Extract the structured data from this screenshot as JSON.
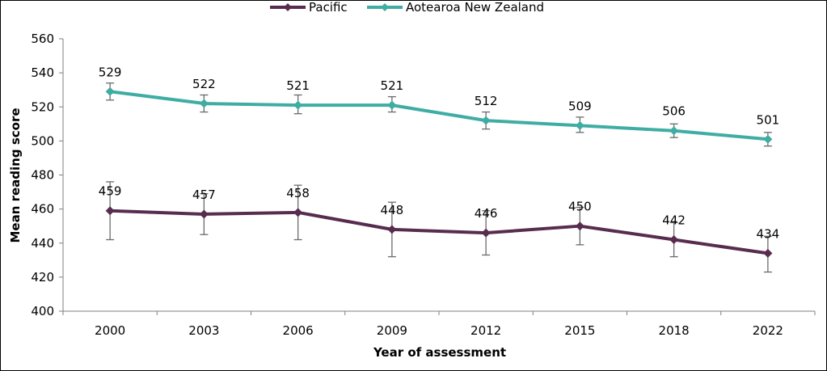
{
  "chart_data": {
    "type": "line",
    "title": "",
    "xlabel": "Year of assessment",
    "ylabel": "Mean reading score",
    "categories": [
      "2000",
      "2003",
      "2006",
      "2009",
      "2012",
      "2015",
      "2018",
      "2022"
    ],
    "ylim": [
      400,
      560
    ],
    "yticks": [
      400,
      420,
      440,
      460,
      480,
      500,
      520,
      540,
      560
    ],
    "legend_position": "top-center",
    "series": [
      {
        "name": "Pacific",
        "color": "#582c4f",
        "values": [
          459,
          457,
          458,
          448,
          446,
          450,
          442,
          434
        ],
        "error_low": [
          442,
          445,
          442,
          432,
          433,
          439,
          432,
          423
        ],
        "error_high": [
          476,
          469,
          474,
          464,
          459,
          461,
          452,
          444
        ]
      },
      {
        "name": "Aotearoa New Zealand",
        "color": "#3fada3",
        "values": [
          529,
          522,
          521,
          521,
          512,
          509,
          506,
          501
        ],
        "error_low": [
          524,
          517,
          516,
          517,
          507,
          505,
          502,
          497
        ],
        "error_high": [
          534,
          527,
          527,
          526,
          517,
          514,
          510,
          505
        ]
      }
    ]
  }
}
